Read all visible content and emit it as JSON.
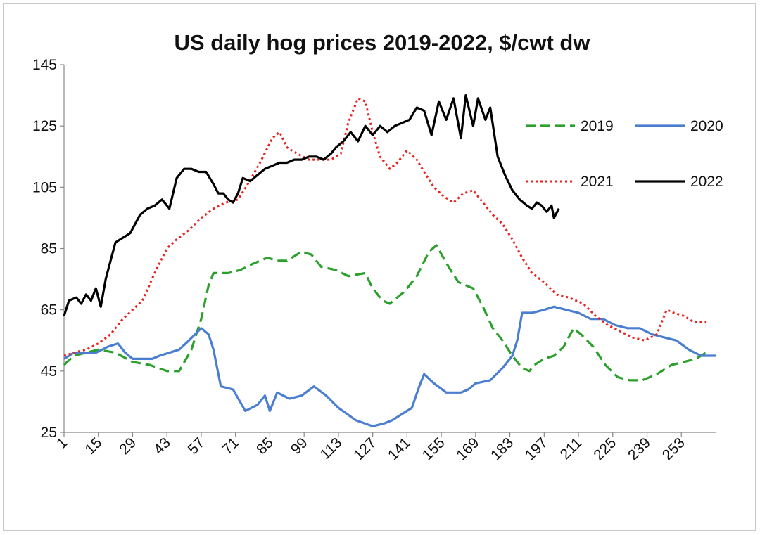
{
  "chart_data": {
    "type": "line",
    "title": "US daily hog prices 2019-2022, $/cwt dw",
    "xlabel": "",
    "ylabel": "",
    "xlim": [
      1,
      267
    ],
    "ylim": [
      25,
      145
    ],
    "y_ticks": [
      25,
      45,
      65,
      85,
      105,
      125,
      145
    ],
    "x_ticks": [
      1,
      15,
      29,
      43,
      57,
      71,
      85,
      99,
      113,
      127,
      141,
      155,
      169,
      183,
      197,
      211,
      225,
      239,
      253
    ],
    "grid": false,
    "legend_position": "top-right",
    "series": [
      {
        "name": "2019",
        "color": "#2ca02c",
        "style": "dashed",
        "points": [
          [
            1,
            47
          ],
          [
            5,
            50
          ],
          [
            10,
            51
          ],
          [
            15,
            52
          ],
          [
            22,
            51
          ],
          [
            29,
            48
          ],
          [
            36,
            47
          ],
          [
            43,
            45
          ],
          [
            48,
            45
          ],
          [
            53,
            52
          ],
          [
            57,
            62
          ],
          [
            60,
            73
          ],
          [
            62,
            77
          ],
          [
            68,
            77
          ],
          [
            73,
            78
          ],
          [
            78,
            80
          ],
          [
            84,
            82
          ],
          [
            88,
            81
          ],
          [
            92,
            81
          ],
          [
            98,
            84
          ],
          [
            102,
            83
          ],
          [
            106,
            79
          ],
          [
            112,
            78
          ],
          [
            117,
            76
          ],
          [
            124,
            77
          ],
          [
            127,
            72
          ],
          [
            131,
            68
          ],
          [
            134,
            67
          ],
          [
            140,
            71
          ],
          [
            145,
            76
          ],
          [
            150,
            84
          ],
          [
            153,
            86
          ],
          [
            158,
            79
          ],
          [
            162,
            74
          ],
          [
            168,
            72
          ],
          [
            172,
            66
          ],
          [
            176,
            59
          ],
          [
            180,
            55
          ],
          [
            184,
            50
          ],
          [
            188,
            46
          ],
          [
            191,
            45
          ],
          [
            193,
            47
          ],
          [
            197,
            49
          ],
          [
            201,
            50
          ],
          [
            205,
            53
          ],
          [
            209,
            59
          ],
          [
            212,
            57
          ],
          [
            217,
            53
          ],
          [
            222,
            47
          ],
          [
            227,
            43
          ],
          [
            232,
            42
          ],
          [
            237,
            42
          ],
          [
            243,
            44
          ],
          [
            249,
            47
          ],
          [
            254,
            48
          ],
          [
            259,
            49
          ],
          [
            263,
            51
          ]
        ]
      },
      {
        "name": "2020",
        "color": "#4a7ed0",
        "style": "solid",
        "points": [
          [
            1,
            49
          ],
          [
            5,
            51
          ],
          [
            10,
            51
          ],
          [
            14,
            51
          ],
          [
            19,
            53
          ],
          [
            23,
            54
          ],
          [
            26,
            51
          ],
          [
            29,
            49
          ],
          [
            33,
            49
          ],
          [
            37,
            49
          ],
          [
            40,
            50
          ],
          [
            44,
            51
          ],
          [
            48,
            52
          ],
          [
            52,
            55
          ],
          [
            57,
            59
          ],
          [
            60,
            57
          ],
          [
            62,
            52
          ],
          [
            65,
            40
          ],
          [
            70,
            39
          ],
          [
            75,
            32
          ],
          [
            80,
            34
          ],
          [
            83,
            37
          ],
          [
            85,
            32
          ],
          [
            88,
            38
          ],
          [
            93,
            36
          ],
          [
            98,
            37
          ],
          [
            103,
            40
          ],
          [
            108,
            37
          ],
          [
            113,
            33
          ],
          [
            120,
            29
          ],
          [
            127,
            27
          ],
          [
            132,
            28
          ],
          [
            135,
            29
          ],
          [
            139,
            31
          ],
          [
            143,
            33
          ],
          [
            146,
            40
          ],
          [
            148,
            44
          ],
          [
            152,
            41
          ],
          [
            157,
            38
          ],
          [
            163,
            38
          ],
          [
            166,
            39
          ],
          [
            169,
            41
          ],
          [
            175,
            42
          ],
          [
            180,
            46
          ],
          [
            184,
            50
          ],
          [
            186,
            55
          ],
          [
            188,
            64
          ],
          [
            192,
            64
          ],
          [
            197,
            65
          ],
          [
            201,
            66
          ],
          [
            206,
            65
          ],
          [
            211,
            64
          ],
          [
            216,
            62
          ],
          [
            221,
            62
          ],
          [
            226,
            60
          ],
          [
            231,
            59
          ],
          [
            236,
            59
          ],
          [
            241,
            57
          ],
          [
            246,
            56
          ],
          [
            251,
            55
          ],
          [
            256,
            52
          ],
          [
            261,
            50
          ],
          [
            267,
            50
          ]
        ]
      },
      {
        "name": "2021",
        "color": "#e8231e",
        "style": "dotted",
        "points": [
          [
            1,
            50
          ],
          [
            5,
            51
          ],
          [
            10,
            52
          ],
          [
            15,
            54
          ],
          [
            20,
            57
          ],
          [
            25,
            62
          ],
          [
            29,
            65
          ],
          [
            33,
            68
          ],
          [
            38,
            77
          ],
          [
            43,
            85
          ],
          [
            47,
            88
          ],
          [
            52,
            91
          ],
          [
            57,
            95
          ],
          [
            62,
            98
          ],
          [
            67,
            100
          ],
          [
            72,
            101
          ],
          [
            76,
            106
          ],
          [
            81,
            113
          ],
          [
            86,
            121
          ],
          [
            89,
            123
          ],
          [
            92,
            118
          ],
          [
            96,
            116
          ],
          [
            101,
            114
          ],
          [
            104,
            114
          ],
          [
            107,
            114
          ],
          [
            110,
            114
          ],
          [
            114,
            116
          ],
          [
            117,
            126
          ],
          [
            121,
            134
          ],
          [
            124,
            133
          ],
          [
            127,
            123
          ],
          [
            130,
            115
          ],
          [
            134,
            111
          ],
          [
            137,
            113
          ],
          [
            141,
            117
          ],
          [
            145,
            114
          ],
          [
            148,
            110
          ],
          [
            152,
            105
          ],
          [
            156,
            102
          ],
          [
            160,
            100
          ],
          [
            164,
            103
          ],
          [
            168,
            104
          ],
          [
            172,
            100
          ],
          [
            176,
            96
          ],
          [
            180,
            93
          ],
          [
            184,
            88
          ],
          [
            188,
            82
          ],
          [
            192,
            77
          ],
          [
            197,
            74
          ],
          [
            202,
            70
          ],
          [
            207,
            69
          ],
          [
            213,
            67
          ],
          [
            218,
            63
          ],
          [
            223,
            60
          ],
          [
            228,
            58
          ],
          [
            233,
            56
          ],
          [
            238,
            55
          ],
          [
            243,
            57
          ],
          [
            247,
            65
          ],
          [
            250,
            64
          ],
          [
            254,
            63
          ],
          [
            258,
            61
          ],
          [
            263,
            61
          ]
        ]
      },
      {
        "name": "2022",
        "color": "#000000",
        "style": "solid",
        "points": [
          [
            1,
            63
          ],
          [
            3,
            68
          ],
          [
            6,
            69
          ],
          [
            8,
            67
          ],
          [
            10,
            70
          ],
          [
            12,
            68
          ],
          [
            14,
            72
          ],
          [
            16,
            66
          ],
          [
            18,
            75
          ],
          [
            20,
            81
          ],
          [
            22,
            87
          ],
          [
            24,
            88
          ],
          [
            26,
            89
          ],
          [
            28,
            90
          ],
          [
            30,
            93
          ],
          [
            32,
            96
          ],
          [
            35,
            98
          ],
          [
            38,
            99
          ],
          [
            41,
            101
          ],
          [
            44,
            98
          ],
          [
            47,
            108
          ],
          [
            50,
            111
          ],
          [
            53,
            111
          ],
          [
            56,
            110
          ],
          [
            59,
            110
          ],
          [
            62,
            106
          ],
          [
            64,
            103
          ],
          [
            66,
            103
          ],
          [
            68,
            101
          ],
          [
            70,
            100
          ],
          [
            72,
            103
          ],
          [
            74,
            108
          ],
          [
            77,
            107
          ],
          [
            80,
            109
          ],
          [
            83,
            111
          ],
          [
            86,
            112
          ],
          [
            89,
            113
          ],
          [
            92,
            113
          ],
          [
            95,
            114
          ],
          [
            98,
            114
          ],
          [
            101,
            115
          ],
          [
            104,
            115
          ],
          [
            107,
            114
          ],
          [
            110,
            116
          ],
          [
            112,
            118
          ],
          [
            115,
            120
          ],
          [
            118,
            123
          ],
          [
            121,
            120
          ],
          [
            124,
            125
          ],
          [
            127,
            122
          ],
          [
            130,
            125
          ],
          [
            133,
            123
          ],
          [
            136,
            125
          ],
          [
            139,
            126
          ],
          [
            142,
            127
          ],
          [
            145,
            131
          ],
          [
            148,
            130
          ],
          [
            151,
            122
          ],
          [
            154,
            133
          ],
          [
            157,
            127
          ],
          [
            160,
            134
          ],
          [
            163,
            121
          ],
          [
            165,
            135
          ],
          [
            168,
            125
          ],
          [
            170,
            134
          ],
          [
            173,
            127
          ],
          [
            175,
            131
          ],
          [
            178,
            115
          ],
          [
            181,
            109
          ],
          [
            184,
            104
          ],
          [
            187,
            101
          ],
          [
            190,
            99
          ],
          [
            192,
            98
          ],
          [
            194,
            100
          ],
          [
            196,
            99
          ],
          [
            198,
            97
          ],
          [
            200,
            99
          ],
          [
            201,
            95
          ],
          [
            203,
            98
          ]
        ]
      }
    ]
  }
}
